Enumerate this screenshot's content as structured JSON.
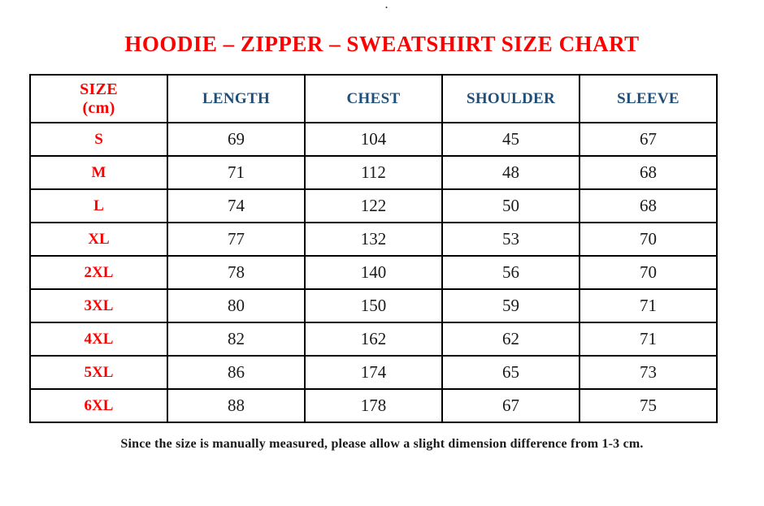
{
  "meta": {
    "stray_mark": "."
  },
  "title": "HOODIE – ZIPPER – SWEATSHIRT SIZE CHART",
  "footer_note": "Since the size is manually measured, please allow a slight dimension difference from 1-3 cm.",
  "colors": {
    "title_red": "#FF0000",
    "size_red": "#FF0000",
    "header_blue": "#1F4E79",
    "value_black": "#1A1A1A",
    "border": "#000000"
  },
  "table": {
    "header": {
      "size_line1": "SIZE",
      "size_line2": "(cm)",
      "length": "LENGTH",
      "chest": "CHEST",
      "shoulder": "SHOULDER",
      "sleeve": "SLEEVE"
    },
    "column_keys": [
      "size",
      "length",
      "chest",
      "shoulder",
      "sleeve"
    ],
    "rows": [
      {
        "size": "S",
        "length": "69",
        "chest": "104",
        "shoulder": "45",
        "sleeve": "67"
      },
      {
        "size": "M",
        "length": "71",
        "chest": "112",
        "shoulder": "48",
        "sleeve": "68"
      },
      {
        "size": "L",
        "length": "74",
        "chest": "122",
        "shoulder": "50",
        "sleeve": "68"
      },
      {
        "size": "XL",
        "length": "77",
        "chest": "132",
        "shoulder": "53",
        "sleeve": "70"
      },
      {
        "size": "2XL",
        "length": "78",
        "chest": "140",
        "shoulder": "56",
        "sleeve": "70"
      },
      {
        "size": "3XL",
        "length": "80",
        "chest": "150",
        "shoulder": "59",
        "sleeve": "71"
      },
      {
        "size": "4XL",
        "length": "82",
        "chest": "162",
        "shoulder": "62",
        "sleeve": "71"
      },
      {
        "size": "5XL",
        "length": "86",
        "chest": "174",
        "shoulder": "65",
        "sleeve": "73"
      },
      {
        "size": "6XL",
        "length": "88",
        "chest": "178",
        "shoulder": "67",
        "sleeve": "75"
      }
    ]
  }
}
